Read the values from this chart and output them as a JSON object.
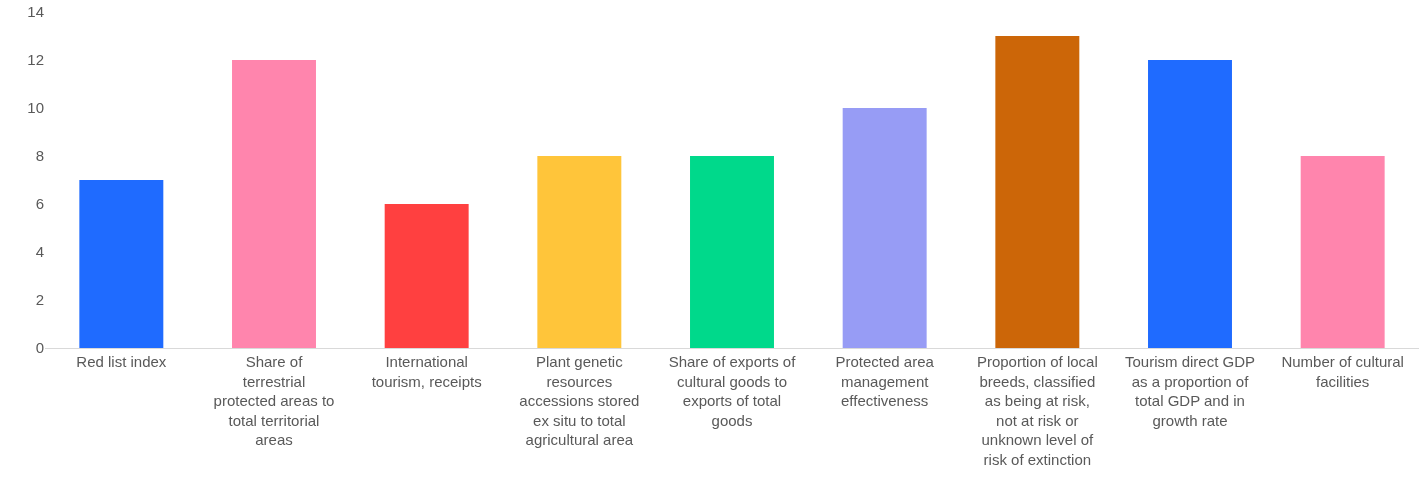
{
  "chart_data": {
    "type": "bar",
    "categories": [
      "Red list index",
      "Share of terrestrial protected areas to total territorial areas",
      "International tourism, receipts",
      "Plant genetic resources accessions stored ex situ to total agricultural area",
      "Share of exports of cultural goods to exports of total goods",
      "Protected area management effectiveness",
      "Proportion of local breeds, classified as being at risk, not at risk or unknown level of risk of extinction",
      "Tourism direct GDP as a proportion of total GDP and in growth rate",
      "Number of cultural facilities"
    ],
    "values": [
      7,
      12,
      6,
      8,
      8,
      10,
      13,
      12,
      8
    ],
    "colors": [
      "#1f6bff",
      "#ff85ad",
      "#ff4040",
      "#ffc53a",
      "#00d98b",
      "#979cf5",
      "#cc6608",
      "#1f6bff",
      "#ff85ad"
    ],
    "ylim": [
      0,
      14
    ],
    "yticks": [
      0,
      2,
      4,
      6,
      8,
      10,
      12,
      14
    ],
    "grid": false
  }
}
